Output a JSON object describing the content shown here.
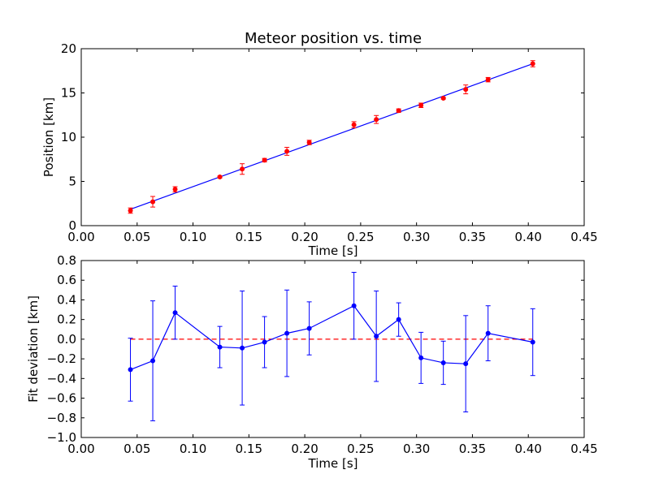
{
  "chart_data": [
    {
      "type": "scatter",
      "title": "Meteor position vs. time",
      "xlabel": "Time [s]",
      "ylabel": "Position [km]",
      "xlim": [
        0.0,
        0.45
      ],
      "ylim": [
        0,
        20
      ],
      "xticks": [
        "0.00",
        "0.05",
        "0.10",
        "0.15",
        "0.20",
        "0.25",
        "0.30",
        "0.35",
        "0.40",
        "0.45"
      ],
      "yticks": [
        "0",
        "5",
        "10",
        "15",
        "20"
      ],
      "grid": false,
      "colors": {
        "points": "#ff0000",
        "errorbars": "#ff0000",
        "fit": "#0000ff"
      },
      "series": [
        {
          "kind": "errorbar-points",
          "x": [
            0.044,
            0.064,
            0.084,
            0.124,
            0.144,
            0.164,
            0.184,
            0.204,
            0.244,
            0.264,
            0.284,
            0.304,
            0.324,
            0.344,
            0.364,
            0.404
          ],
          "y": [
            1.7,
            2.7,
            4.1,
            5.5,
            6.4,
            7.4,
            8.4,
            9.4,
            11.4,
            12.0,
            13.0,
            13.6,
            14.4,
            15.4,
            16.5,
            18.3
          ],
          "yerr": [
            0.3,
            0.6,
            0.3,
            0.1,
            0.6,
            0.2,
            0.45,
            0.25,
            0.35,
            0.45,
            0.2,
            0.25,
            0.1,
            0.5,
            0.25,
            0.35
          ]
        },
        {
          "kind": "fit-line",
          "x": [
            0.044,
            0.404
          ],
          "y": [
            1.85,
            18.3
          ]
        }
      ]
    },
    {
      "type": "line",
      "title": "",
      "xlabel": "Time [s]",
      "ylabel": "Fit deviation [km]",
      "xlim": [
        0.0,
        0.45
      ],
      "ylim": [
        -1.0,
        0.8
      ],
      "xticks": [
        "0.00",
        "0.05",
        "0.10",
        "0.15",
        "0.20",
        "0.25",
        "0.30",
        "0.35",
        "0.40",
        "0.45"
      ],
      "yticks": [
        "−1.0",
        "−0.8",
        "−0.6",
        "−0.4",
        "−0.2",
        "0.0",
        "0.2",
        "0.4",
        "0.6",
        "0.8"
      ],
      "grid": false,
      "colors": {
        "series": "#0000ff",
        "zero_line": "#ff0000"
      },
      "zero_line": {
        "y": 0.0,
        "x": [
          0.044,
          0.404
        ]
      },
      "series": [
        {
          "kind": "errorbar-line",
          "x": [
            0.044,
            0.064,
            0.084,
            0.124,
            0.144,
            0.164,
            0.184,
            0.204,
            0.244,
            0.264,
            0.284,
            0.304,
            0.324,
            0.344,
            0.364,
            0.404
          ],
          "y": [
            -0.31,
            -0.22,
            0.27,
            -0.08,
            -0.09,
            -0.03,
            0.06,
            0.11,
            0.34,
            0.03,
            0.2,
            -0.19,
            -0.24,
            -0.25,
            0.06,
            -0.03
          ],
          "yerr": [
            0.32,
            0.61,
            0.27,
            0.21,
            0.58,
            0.26,
            0.44,
            0.27,
            0.34,
            0.46,
            0.17,
            0.26,
            0.22,
            0.49,
            0.28,
            0.34
          ]
        }
      ]
    }
  ]
}
